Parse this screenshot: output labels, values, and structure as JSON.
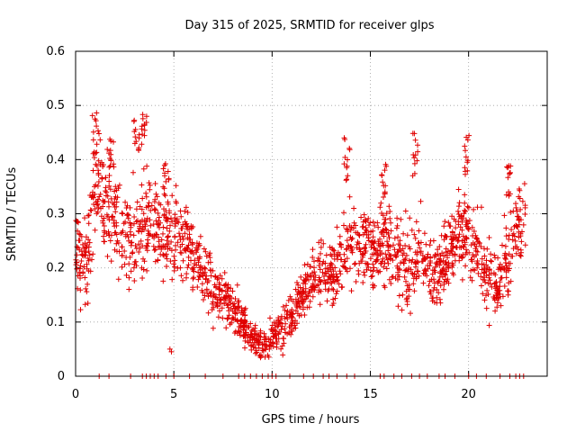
{
  "chart_data": {
    "type": "scatter",
    "title": "Day 315 of 2025, SRMTID for receiver glps",
    "xlabel": "GPS time / hours",
    "ylabel": "SRMTID / TECUs",
    "xlim": [
      0,
      24
    ],
    "ylim": [
      0,
      0.6
    ],
    "xticks": [
      0,
      5,
      10,
      15,
      20
    ],
    "yticks": [
      0,
      0.1,
      0.2,
      0.3,
      0.4,
      0.5,
      0.6
    ],
    "xtick_labels": [
      "0",
      "5",
      "10",
      "15",
      "20"
    ],
    "ytick_labels": [
      "0",
      "0.1",
      "0.2",
      "0.3",
      "0.4",
      "0.5",
      "0.6"
    ],
    "grid": true,
    "marker": "+",
    "color": "#e00000",
    "trend": {
      "x": [
        0,
        0.5,
        1,
        1.5,
        2,
        2.5,
        3,
        3.5,
        4,
        4.5,
        5,
        5.5,
        6,
        6.5,
        7,
        7.5,
        8,
        8.5,
        9,
        9.5,
        10,
        10.5,
        11,
        11.5,
        12,
        12.5,
        13,
        13.5,
        14,
        14.5,
        15,
        15.5,
        16,
        16.5,
        17,
        17.5,
        18,
        18.5,
        19,
        19.5,
        20,
        20.5,
        21,
        21.5,
        22,
        22.5,
        22.9
      ],
      "y": [
        0.24,
        0.2,
        0.35,
        0.33,
        0.28,
        0.27,
        0.26,
        0.29,
        0.28,
        0.26,
        0.27,
        0.25,
        0.22,
        0.19,
        0.16,
        0.15,
        0.12,
        0.1,
        0.07,
        0.06,
        0.07,
        0.09,
        0.11,
        0.15,
        0.18,
        0.2,
        0.19,
        0.21,
        0.25,
        0.24,
        0.23,
        0.25,
        0.24,
        0.21,
        0.19,
        0.23,
        0.2,
        0.19,
        0.23,
        0.27,
        0.26,
        0.22,
        0.18,
        0.17,
        0.22,
        0.27,
        0.29
      ]
    },
    "spread": {
      "x": [
        0,
        1,
        2,
        3,
        4,
        5,
        6,
        7,
        8,
        9,
        10,
        11,
        12,
        13,
        14,
        15,
        16,
        17,
        18,
        19,
        20,
        21,
        22,
        22.9
      ],
      "amplitude": [
        0.08,
        0.12,
        0.1,
        0.12,
        0.1,
        0.09,
        0.08,
        0.07,
        0.06,
        0.03,
        0.04,
        0.05,
        0.06,
        0.07,
        0.1,
        0.09,
        0.09,
        0.1,
        0.08,
        0.08,
        0.09,
        0.08,
        0.09,
        0.1
      ]
    },
    "peaks": [
      {
        "x": 1.0,
        "y": 0.49
      },
      {
        "x": 1.8,
        "y": 0.46
      },
      {
        "x": 3.1,
        "y": 0.48
      },
      {
        "x": 3.5,
        "y": 0.5
      },
      {
        "x": 4.6,
        "y": 0.4
      },
      {
        "x": 13.8,
        "y": 0.44
      },
      {
        "x": 15.7,
        "y": 0.4
      },
      {
        "x": 17.3,
        "y": 0.45
      },
      {
        "x": 19.9,
        "y": 0.45
      },
      {
        "x": 22.0,
        "y": 0.41
      }
    ],
    "outliers": [
      {
        "x": 4.8,
        "y": 0.05
      }
    ],
    "zero_values_x": [
      1.2,
      1.7,
      2.8,
      3.4,
      3.6,
      3.8,
      4.0,
      4.2,
      4.6,
      5.0,
      5.8,
      6.6,
      7.5,
      8.3,
      8.6,
      8.9,
      9.2,
      9.5,
      9.8,
      10.0,
      10.2,
      10.9,
      11.6,
      12.1,
      12.6,
      12.9,
      13.3,
      13.8,
      14.2,
      15.5,
      15.7,
      16.2,
      16.6,
      17.1,
      17.5,
      17.9,
      18.5,
      18.8,
      19.3,
      20.0,
      20.4,
      20.9,
      21.6,
      22.1,
      22.4,
      22.6,
      22.8
    ],
    "n_points": 1800
  }
}
